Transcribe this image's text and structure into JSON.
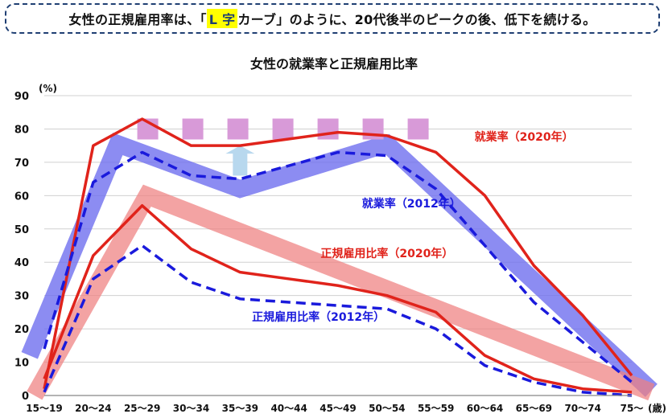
{
  "headline": {
    "pre": "女性の正規雇用率は、「",
    "highlight": "L 字",
    "post": "カーブ」のように、20代後半のピークの後、低下を続ける。"
  },
  "chart_data": {
    "type": "line",
    "title": "女性の就業率と正規雇用比率",
    "categories": [
      "15～19",
      "20～24",
      "25～29",
      "30～34",
      "35～39",
      "40～44",
      "45～49",
      "50～54",
      "55～59",
      "60～64",
      "65～69",
      "70～74",
      "75～"
    ],
    "y_unit": "(%)",
    "x_unit": "(歳)",
    "ylim": [
      0,
      90
    ],
    "yticks": [
      0,
      10,
      20,
      30,
      40,
      50,
      60,
      70,
      80,
      90
    ],
    "grid": true,
    "series": [
      {
        "name": "就業率（2020年）",
        "color": "#e0231b",
        "style": "solid",
        "values": [
          2,
          75,
          83,
          75,
          75,
          77,
          79,
          78,
          73,
          60,
          39,
          24,
          6
        ]
      },
      {
        "name": "就業率（2012年）",
        "color": "#1a1adc",
        "style": "dashed",
        "values": [
          14,
          64,
          73,
          66,
          65,
          69,
          73,
          72,
          62,
          45,
          28,
          16,
          4
        ]
      },
      {
        "name": "正規雇用比率（2020年）",
        "color": "#e0231b",
        "style": "solid",
        "values": [
          5,
          42,
          57,
          44,
          37,
          35,
          33,
          30,
          25,
          12,
          5,
          2,
          1
        ]
      },
      {
        "name": "正規雇用比率（2012年）",
        "color": "#1a1adc",
        "style": "dashed",
        "values": [
          1,
          35,
          45,
          34,
          29,
          28,
          27,
          26,
          20,
          9,
          4,
          1,
          0
        ]
      }
    ],
    "labels": [
      {
        "series": 0,
        "text": "就業率（2020年）",
        "color": "#e0231b",
        "at": [
          9.8,
          76.5
        ]
      },
      {
        "series": 1,
        "text": "就業率（2012年）",
        "color": "#1a1adc",
        "at": [
          7.5,
          56.5
        ]
      },
      {
        "series": 2,
        "text": "正規雇用比率（2020年）",
        "color": "#e0231b",
        "at": [
          7.0,
          41.5
        ]
      },
      {
        "series": 3,
        "text": "正規雇用比率（2012年）",
        "color": "#1a1adc",
        "at": [
          5.6,
          22.5
        ]
      }
    ],
    "bands": [
      {
        "color": "#6f6fef",
        "opacity": 0.8,
        "points": [
          [
            -0.3,
            12
          ],
          [
            1.5,
            75.5
          ],
          [
            4,
            62
          ],
          [
            7,
            75.5
          ],
          [
            12.4,
            1.5
          ]
        ]
      },
      {
        "color": "#ef7f7f",
        "opacity": 0.72,
        "points": [
          [
            -0.2,
            0
          ],
          [
            2.1,
            60
          ],
          [
            12.4,
            1
          ]
        ]
      }
    ],
    "dashed_band": {
      "color": "#d89ad8",
      "value": 80,
      "from": 1.9,
      "to": 7.9
    },
    "arrow": {
      "color": "#b8d8ee",
      "x": 4,
      "from": 66,
      "to": 75
    }
  }
}
